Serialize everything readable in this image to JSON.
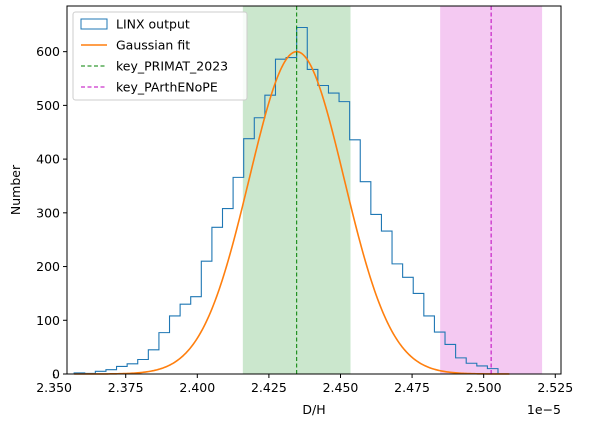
{
  "chart_data": {
    "type": "histogram",
    "xlabel": "D/H",
    "ylabel": "Number",
    "offset_label": "1e−5",
    "xlim": [
      2.3545,
      2.527
    ],
    "ylim": [
      0,
      685
    ],
    "x_ticks": [
      2.35,
      2.375,
      2.4,
      2.425,
      2.45,
      2.475,
      2.5,
      2.525
    ],
    "x_tick_labels": [
      "2.350",
      "2.375",
      "2.400",
      "2.425",
      "2.450",
      "2.475",
      "2.500",
      "2.525"
    ],
    "y_ticks": [
      0,
      100,
      200,
      300,
      400,
      500,
      600
    ],
    "y_tick_labels": [
      "0",
      "100",
      "200",
      "300",
      "400",
      "500",
      "600"
    ],
    "grid": false,
    "legend_position": "upper-left",
    "histogram": {
      "name": "LINX output",
      "color": "#1f77b4",
      "bin_edges": [
        2.357,
        2.3607,
        2.3644,
        2.3681,
        2.3718,
        2.3755,
        2.3792,
        2.3829,
        2.3866,
        2.3903,
        2.394,
        2.3977,
        2.4014,
        2.4051,
        2.4088,
        2.4125,
        2.4162,
        2.4199,
        2.4236,
        2.4273,
        2.431,
        2.4347,
        2.4384,
        2.4421,
        2.4458,
        2.4495,
        2.4532,
        2.4569,
        2.4606,
        2.4643,
        2.468,
        2.4717,
        2.4754,
        2.4791,
        2.4828,
        2.4865,
        2.4902,
        2.4939,
        2.4976,
        2.5013,
        2.505
      ],
      "counts": [
        2,
        1,
        5,
        8,
        14,
        19,
        27,
        45,
        77,
        108,
        130,
        144,
        210,
        273,
        308,
        366,
        438,
        477,
        519,
        586,
        589,
        645,
        567,
        537,
        523,
        507,
        436,
        358,
        297,
        266,
        205,
        180,
        150,
        108,
        78,
        55,
        30,
        20,
        15,
        10
      ]
    },
    "gaussian_fit": {
      "name": "Gaussian fit",
      "color": "#ff7f0e",
      "mean": 2.4347,
      "sigma": 0.01655,
      "amplitude": 600,
      "x_range": [
        2.357,
        2.509
      ]
    },
    "reference_lines": [
      {
        "name": "key_PRIMAT_2023",
        "x": 2.4347,
        "band": [
          2.4159,
          2.4535
        ],
        "line_color": "#008000",
        "band_color": "#cbe7cd"
      },
      {
        "name": "key_PArthENoPE",
        "x": 2.5026,
        "band": [
          2.4848,
          2.5204
        ],
        "line_color": "#bf00bf",
        "band_color": "#f4c9f2"
      }
    ]
  }
}
